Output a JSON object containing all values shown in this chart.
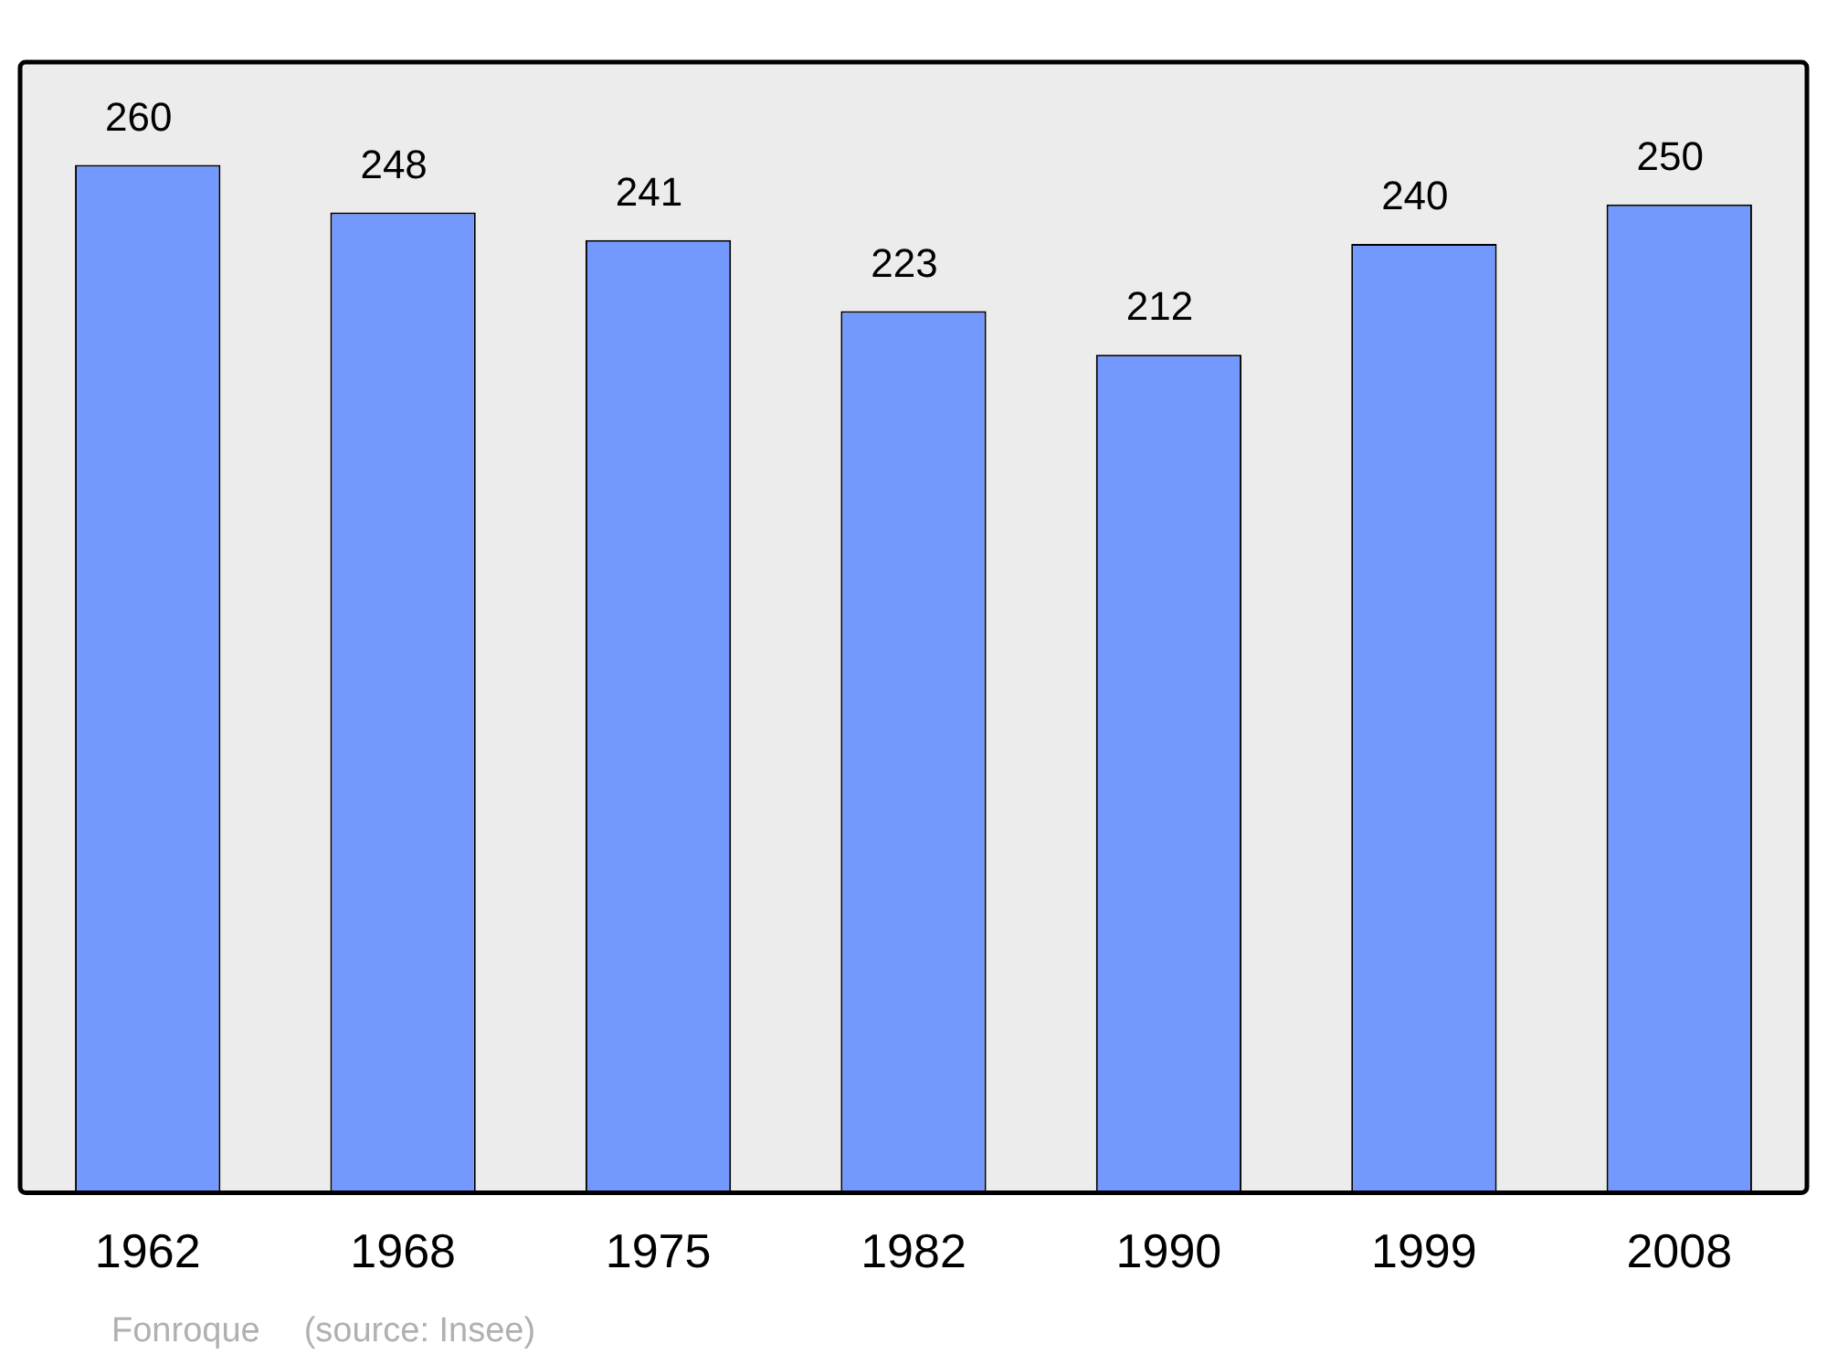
{
  "chart_data": {
    "type": "bar",
    "categories": [
      "1962",
      "1968",
      "1975",
      "1982",
      "1990",
      "1999",
      "2008"
    ],
    "values": [
      260,
      248,
      241,
      223,
      212,
      240,
      250
    ],
    "color": "#7399ff",
    "data_labels": true,
    "grid": false,
    "legend": false,
    "annotations": [
      "Fonroque",
      "(source: Insee)"
    ]
  }
}
